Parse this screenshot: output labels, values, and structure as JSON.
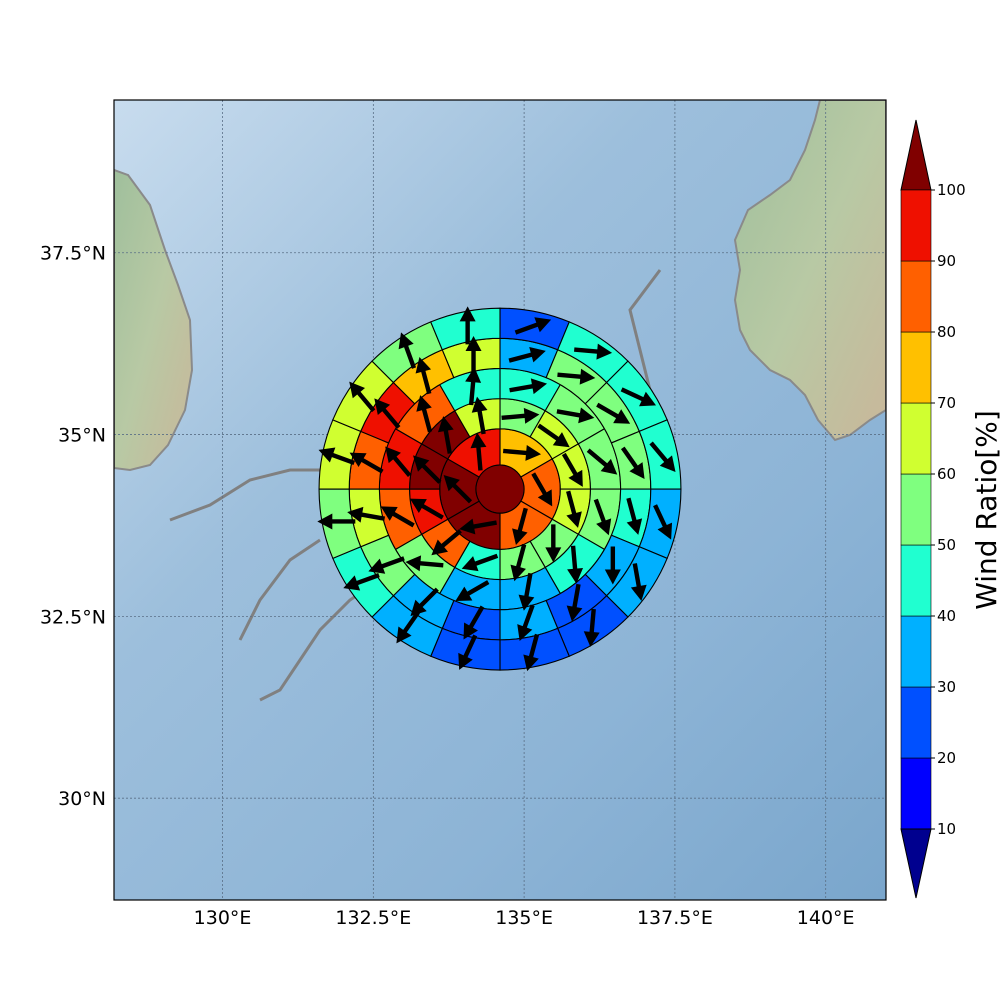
{
  "map": {
    "lon_range": [
      128.2,
      141.0
    ],
    "lat_range": [
      28.6,
      39.6
    ],
    "center": {
      "lon": 134.6,
      "lat": 34.25
    },
    "x_ticks": [
      {
        "value": 130,
        "label": "130°E"
      },
      {
        "value": 132.5,
        "label": "132.5°E"
      },
      {
        "value": 135,
        "label": "135°E"
      },
      {
        "value": 137.5,
        "label": "137.5°E"
      },
      {
        "value": 140,
        "label": "140°E"
      }
    ],
    "y_ticks": [
      {
        "value": 30,
        "label": "30°N"
      },
      {
        "value": 32.5,
        "label": "32.5°N"
      },
      {
        "value": 35,
        "label": "35°N"
      },
      {
        "value": 37.5,
        "label": "37.5°N"
      }
    ],
    "gridlines": true
  },
  "colorbar": {
    "label": "Wind Ratio[%]",
    "levels": [
      10,
      20,
      30,
      40,
      50,
      60,
      70,
      80,
      90,
      100
    ],
    "tick_labels": [
      "10",
      "20",
      "30",
      "40",
      "50",
      "60",
      "70",
      "80",
      "90",
      "100"
    ],
    "colors": [
      "#00008f",
      "#0000ff",
      "#0050ff",
      "#00b0ff",
      "#20ffd0",
      "#7fff7f",
      "#d0ff30",
      "#ffc000",
      "#ff6000",
      "#ef1000",
      "#800000"
    ]
  },
  "rings": [
    {
      "radius": 0.4,
      "sectors": 1,
      "ratios": [
        100
      ],
      "dirs": [
        0
      ]
    },
    {
      "radius": 1.0,
      "sectors": 6,
      "ratios": [
        75,
        85,
        85,
        100,
        100,
        95
      ],
      "dirs": [
        95,
        150,
        195,
        260,
        315,
        355
      ]
    },
    {
      "radius": 1.5,
      "sectors": 12,
      "ratios": [
        55,
        65,
        65,
        65,
        55,
        55,
        45,
        85,
        95,
        100,
        100,
        65
      ],
      "dirs": [
        85,
        125,
        150,
        165,
        180,
        195,
        250,
        230,
        300,
        315,
        350,
        350
      ]
    },
    {
      "radius": 2.0,
      "sectors": 12,
      "ratios": [
        45,
        55,
        55,
        55,
        45,
        35,
        35,
        55,
        85,
        95,
        85,
        45
      ],
      "dirs": [
        80,
        100,
        130,
        160,
        175,
        190,
        240,
        275,
        300,
        320,
        345,
        5
      ]
    },
    {
      "radius": 2.5,
      "sectors": 16,
      "ratios": [
        35,
        55,
        55,
        55,
        45,
        35,
        25,
        35,
        25,
        35,
        55,
        65,
        85,
        95,
        75,
        65
      ],
      "dirs": [
        75,
        95,
        120,
        145,
        165,
        180,
        190,
        200,
        210,
        225,
        250,
        280,
        300,
        320,
        345,
        0
      ]
    },
    {
      "radius": 3.0,
      "sectors": 16,
      "ratios": [
        25,
        45,
        45,
        45,
        35,
        35,
        25,
        25,
        25,
        35,
        45,
        55,
        65,
        65,
        55,
        45
      ],
      "dirs": [
        70,
        95,
        115,
        140,
        155,
        170,
        185,
        195,
        205,
        215,
        250,
        270,
        290,
        320,
        340,
        0
      ]
    }
  ]
}
